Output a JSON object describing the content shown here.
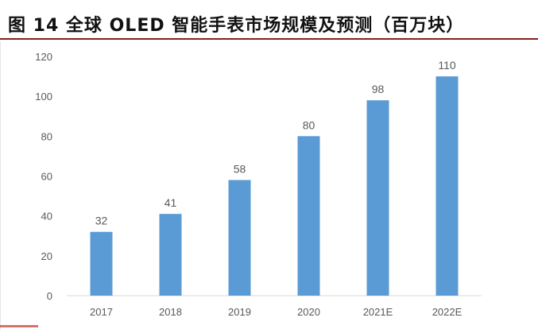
{
  "figure": {
    "title": "图 14 全球 OLED 智能手表市场规模及预测（百万块）"
  },
  "chart_data": {
    "type": "bar",
    "title": "",
    "xlabel": "",
    "ylabel": "",
    "categories": [
      "2017",
      "2018",
      "2019",
      "2020",
      "2021E",
      "2022E"
    ],
    "values": [
      32,
      41,
      58,
      80,
      98,
      110
    ],
    "ylim": [
      0,
      120
    ],
    "yticks": [
      0,
      20,
      40,
      60,
      80,
      100,
      120
    ],
    "grid": false,
    "legend": "none",
    "data_labels": true,
    "colors": {
      "bar": "#5b9bd5",
      "axis": "#d9d9d9",
      "text": "#595959"
    }
  }
}
